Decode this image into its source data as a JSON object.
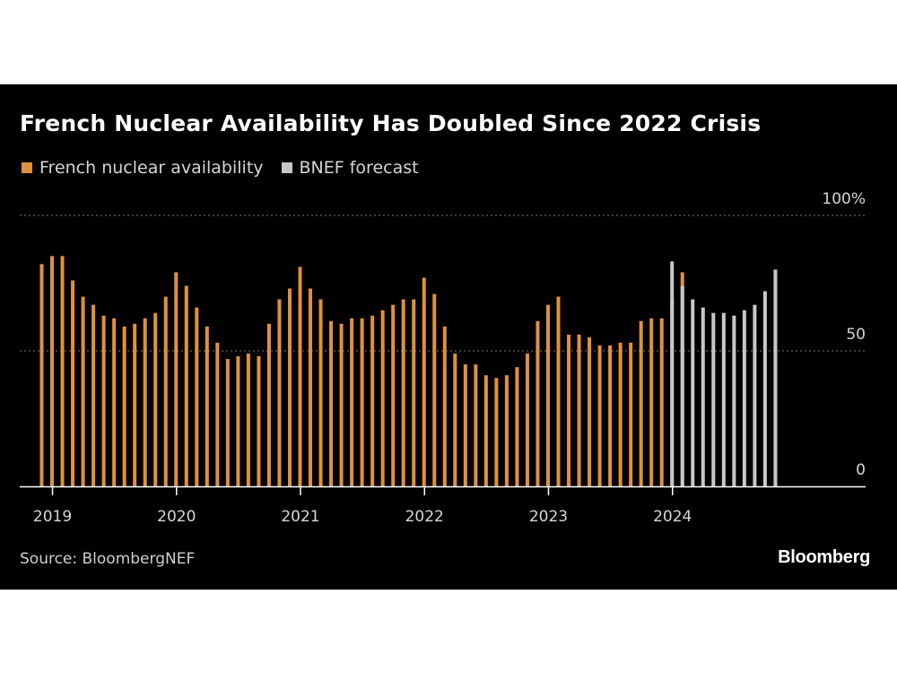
{
  "chart_data": {
    "type": "bar",
    "title": "French Nuclear Availability Has Doubled Since 2022 Crisis",
    "source": "Source: BloombergNEF",
    "brand": "Bloomberg",
    "ylim": [
      0,
      100
    ],
    "y_ticks": [
      {
        "value": 100,
        "label": "100%"
      },
      {
        "value": 50,
        "label": "50"
      },
      {
        "value": 0,
        "label": "0"
      }
    ],
    "grid": "dotted horizontal at 50 and 100",
    "legend_placement": "top-left",
    "x_tick_labels": [
      "2019",
      "2020",
      "2021",
      "2022",
      "2023",
      "2024"
    ],
    "series": [
      {
        "name": "French nuclear availability",
        "color": "#e0913e",
        "start": "2018-12",
        "values": [
          82,
          85,
          85,
          76,
          70,
          67,
          63,
          62,
          59,
          60,
          62,
          64,
          70,
          79,
          74,
          66,
          59,
          53,
          47,
          48,
          49,
          48,
          60,
          69,
          73,
          81,
          73,
          69,
          61,
          60,
          62,
          62,
          63,
          65,
          67,
          69,
          69,
          77,
          71,
          59,
          49,
          45,
          45,
          41,
          40,
          41,
          44,
          49,
          61,
          67,
          70,
          56,
          56,
          55,
          52,
          52,
          53,
          53,
          61,
          62,
          62,
          69,
          79
        ]
      },
      {
        "name": "BNEF forecast",
        "color": "#c8c8c8",
        "start": "2024-01",
        "values": [
          83,
          74,
          69,
          66,
          64,
          64,
          63,
          65,
          67,
          72,
          80
        ]
      }
    ]
  }
}
